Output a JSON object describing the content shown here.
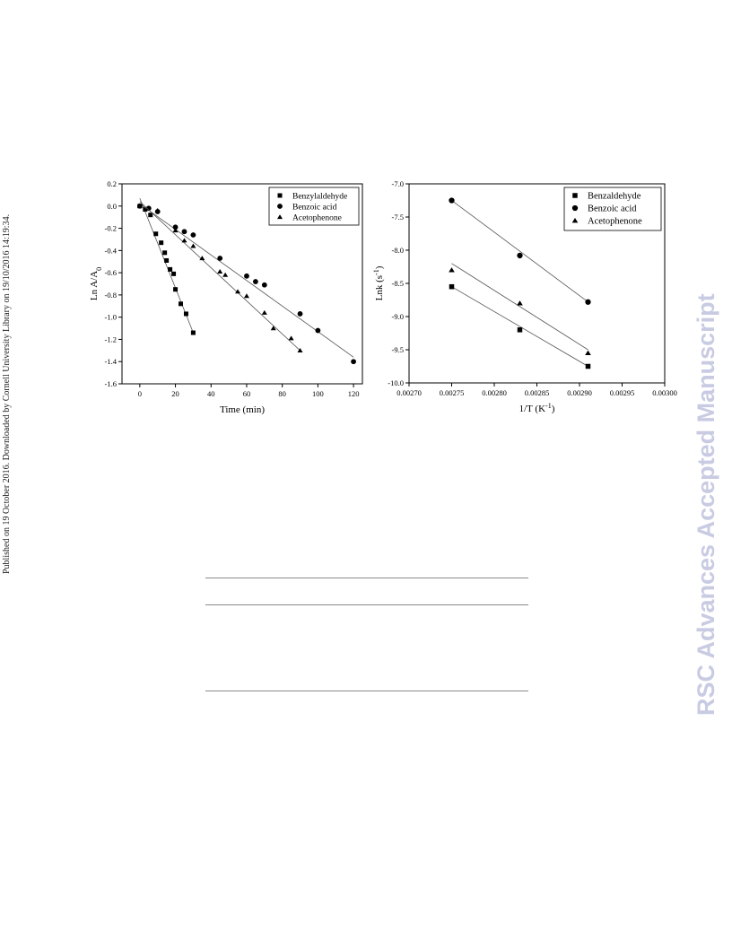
{
  "side_note": "Published on 19 October 2016. Downloaded by Cornell University Library on 19/10/2016 14:19:34.",
  "watermark": "RSC Advances Accepted Manuscript",
  "colors": {
    "line": "#555555",
    "marker": "#000000",
    "watermark": "#c8cbe2"
  },
  "chart_data": [
    {
      "type": "scatter",
      "xlabel": "Time (min)",
      "ylabel": "Ln A/A",
      "ylabel_sub": "0",
      "xlim": [
        -10,
        125
      ],
      "ylim": [
        -1.6,
        0.2
      ],
      "xticks": [
        0,
        20,
        40,
        60,
        80,
        100,
        120
      ],
      "yticks": [
        0.2,
        0.0,
        -0.2,
        -0.4,
        -0.6,
        -0.8,
        -1.0,
        -1.2,
        -1.4,
        -1.6
      ],
      "legend_position": "top-right",
      "series": [
        {
          "name": "Benzylaldehyde",
          "marker": "square",
          "x": [
            0,
            3,
            6,
            9,
            12,
            14,
            15,
            17,
            19,
            20,
            23,
            26,
            30
          ],
          "y": [
            0.0,
            -0.03,
            -0.08,
            -0.25,
            -0.33,
            -0.42,
            -0.49,
            -0.57,
            -0.61,
            -0.75,
            -0.88,
            -0.97,
            -1.14
          ],
          "fit": [
            [
              0,
              0.07
            ],
            [
              30,
              -1.14
            ]
          ]
        },
        {
          "name": "Benzoic acid",
          "marker": "circle",
          "x": [
            0,
            5,
            10,
            20,
            25,
            30,
            45,
            60,
            65,
            70,
            90,
            100,
            120
          ],
          "y": [
            0.0,
            -0.02,
            -0.05,
            -0.19,
            -0.23,
            -0.26,
            -0.47,
            -0.63,
            -0.68,
            -0.71,
            -0.97,
            -1.12,
            -1.4
          ],
          "fit": [
            [
              0,
              0.02
            ],
            [
              120,
              -1.36
            ]
          ]
        },
        {
          "name": "Acetophenone",
          "marker": "triangle",
          "x": [
            0,
            10,
            20,
            25,
            30,
            35,
            45,
            48,
            55,
            60,
            70,
            75,
            85,
            90
          ],
          "y": [
            0.0,
            -0.04,
            -0.22,
            -0.31,
            -0.36,
            -0.47,
            -0.59,
            -0.62,
            -0.77,
            -0.81,
            -0.96,
            -1.1,
            -1.19,
            -1.3
          ],
          "fit": [
            [
              0,
              0.04
            ],
            [
              90,
              -1.3
            ]
          ]
        }
      ]
    },
    {
      "type": "scatter",
      "xlabel": "1/T (K",
      "xlabel_sup": "-1",
      "xlabel_tail": ")",
      "ylabel": "Lnk (s",
      "ylabel_sup": "-1",
      "ylabel_tail": ")",
      "xlim": [
        0.0027,
        0.003
      ],
      "ylim": [
        -10.0,
        -7.0
      ],
      "xticks": [
        "0.00270",
        "0.00275",
        "0.00280",
        "0.00285",
        "0.00290",
        "0.00295",
        "0.00300"
      ],
      "yticks": [
        "-7.0",
        "-7.5",
        "-8.0",
        "-8.5",
        "-9.0",
        "-9.5",
        "-10.0"
      ],
      "legend_position": "top-right",
      "series": [
        {
          "name": "Benzaldehyde",
          "marker": "square",
          "x": [
            0.00275,
            0.00283,
            0.00291
          ],
          "y": [
            -8.55,
            -9.2,
            -9.75
          ],
          "fit": [
            [
              0.00275,
              -8.55
            ],
            [
              0.00291,
              -9.75
            ]
          ]
        },
        {
          "name": "Benzoic acid",
          "marker": "circle",
          "x": [
            0.00275,
            0.00283,
            0.00291
          ],
          "y": [
            -7.25,
            -8.08,
            -8.78
          ],
          "fit": [
            [
              0.00275,
              -7.25
            ],
            [
              0.00291,
              -8.78
            ]
          ]
        },
        {
          "name": "Acetophenone",
          "marker": "triangle",
          "x": [
            0.00275,
            0.00283,
            0.00291
          ],
          "y": [
            -8.3,
            -8.8,
            -9.55
          ],
          "fit": [
            [
              0.00275,
              -8.2
            ],
            [
              0.00291,
              -9.5
            ]
          ]
        }
      ]
    }
  ]
}
